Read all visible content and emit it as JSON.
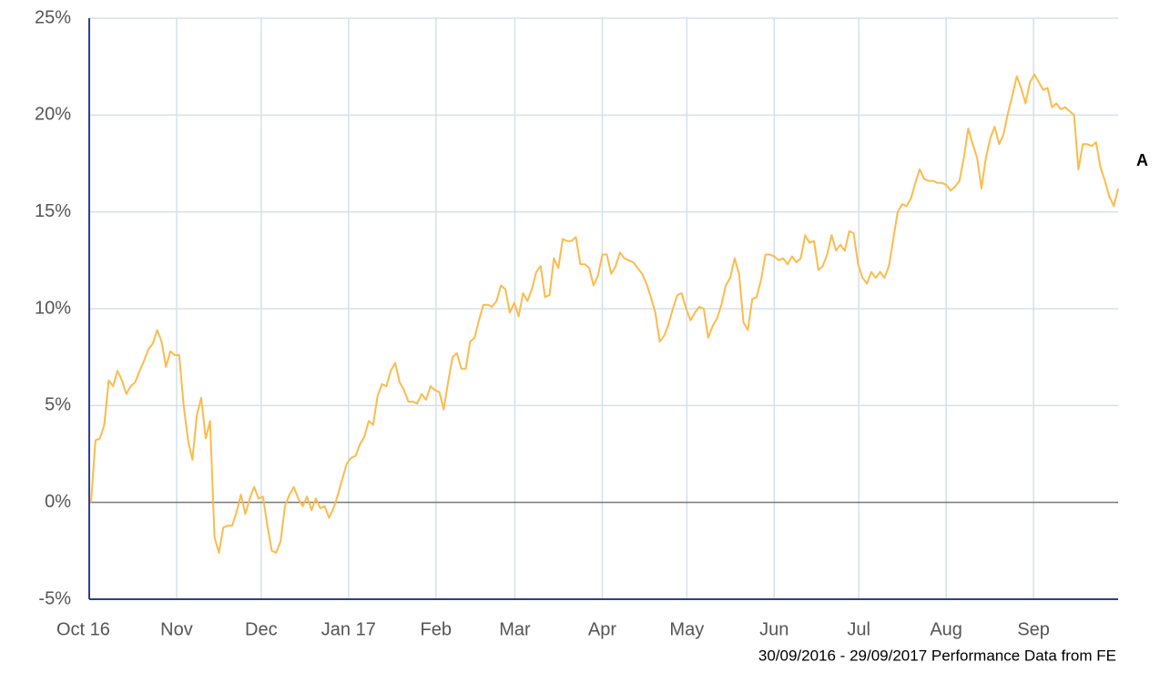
{
  "chart_data": {
    "type": "line",
    "footer": "30/09/2016 - 29/09/2017 Performance Data from FE",
    "xlim": [
      "2016-10",
      "2017-10"
    ],
    "xticks": [
      {
        "value": "2016-10",
        "label": "Oct 16"
      },
      {
        "value": "2016-11",
        "label": "Nov"
      },
      {
        "value": "2016-12",
        "label": "Dec"
      },
      {
        "value": "2017-01",
        "label": "Jan 17"
      },
      {
        "value": "2017-02",
        "label": "Feb"
      },
      {
        "value": "2017-03",
        "label": "Mar"
      },
      {
        "value": "2017-04",
        "label": "Apr"
      },
      {
        "value": "2017-05",
        "label": "May"
      },
      {
        "value": "2017-06",
        "label": "Jun"
      },
      {
        "value": "2017-07",
        "label": "Jul"
      },
      {
        "value": "2017-08",
        "label": "Aug"
      },
      {
        "value": "2017-09",
        "label": "Sep"
      }
    ],
    "ylim": [
      -5,
      25
    ],
    "yticks": [
      {
        "value": -5,
        "label": "-5%"
      },
      {
        "value": 0,
        "label": "0%"
      },
      {
        "value": 5,
        "label": "5%"
      },
      {
        "value": 10,
        "label": "10%"
      },
      {
        "value": 15,
        "label": "15%"
      },
      {
        "value": 20,
        "label": "20%"
      },
      {
        "value": 25,
        "label": "25%"
      }
    ],
    "grid": true,
    "series": [
      {
        "name": "A",
        "color": "#fbbb4c",
        "values": [
          0,
          3.2,
          3.3,
          4,
          6.3,
          6,
          6.8,
          6.3,
          5.6,
          6,
          6.2,
          6.8,
          7.3,
          7.9,
          8.2,
          8.9,
          8.3,
          7,
          7.8,
          7.6,
          7.6,
          5,
          3.2,
          2.2,
          4.5,
          5.4,
          3.3,
          4.2,
          -1.8,
          -2.6,
          -1.3,
          -1.2,
          -1.2,
          -0.5,
          0.4,
          -0.6,
          0.2,
          0.8,
          0.2,
          0.3,
          -1.2,
          -2.5,
          -2.6,
          -2,
          -0.2,
          0.4,
          0.8,
          0.2,
          -0.2,
          0.3,
          -0.4,
          0.2,
          -0.3,
          -0.2,
          -0.8,
          -0.3,
          0.4,
          1.2,
          2,
          2.3,
          2.4,
          3,
          3.4,
          4.2,
          4,
          5.5,
          6.1,
          6,
          6.8,
          7.2,
          6.2,
          5.8,
          5.2,
          5.2,
          5.1,
          5.6,
          5.3,
          6,
          5.8,
          5.7,
          4.8,
          6.2,
          7.5,
          7.7,
          6.9,
          6.9,
          8.3,
          8.5,
          9.4,
          10.2,
          10.2,
          10.1,
          10.4,
          11.2,
          11,
          9.8,
          10.3,
          9.6,
          10.8,
          10.4,
          11,
          11.9,
          12.2,
          10.6,
          10.7,
          12.6,
          12.1,
          13.6,
          13.5,
          13.5,
          13.7,
          12.3,
          12.3,
          12.1,
          11.2,
          11.7,
          12.8,
          12.8,
          11.8,
          12.2,
          12.9,
          12.6,
          12.5,
          12.4,
          12.1,
          11.8,
          11.3,
          10.6,
          9.8,
          8.3,
          8.6,
          9.2,
          10,
          10.7,
          10.8,
          10,
          9.4,
          9.8,
          10.1,
          10,
          8.5,
          9.1,
          9.5,
          10.2,
          11.2,
          11.6,
          12.6,
          11.8,
          9.3,
          8.9,
          10.5,
          10.6,
          11.5,
          12.8,
          12.8,
          12.7,
          12.5,
          12.6,
          12.3,
          12.7,
          12.4,
          12.6,
          13.8,
          13.4,
          13.5,
          12,
          12.2,
          12.8,
          13.8,
          13,
          13.3,
          13,
          14,
          13.9,
          12.3,
          11.6,
          11.3,
          11.9,
          11.6,
          11.9,
          11.6,
          12.2,
          13.6,
          15,
          15.4,
          15.3,
          15.7,
          16.5,
          17.2,
          16.7,
          16.6,
          16.6,
          16.5,
          16.5,
          16.4,
          16.1,
          16.3,
          16.6,
          17.8,
          19.3,
          18.5,
          17.8,
          16.2,
          17.8,
          18.8,
          19.4,
          18.5,
          19,
          20.1,
          21,
          22,
          21.4,
          20.6,
          21.7,
          22.1,
          21.7,
          21.3,
          21.4,
          20.4,
          20.6,
          20.3,
          20.4,
          20.2,
          20,
          17.2,
          18.5,
          18.5,
          18.4,
          18.6,
          17.3,
          16.6,
          15.8,
          15.3,
          16.2
        ]
      }
    ]
  }
}
